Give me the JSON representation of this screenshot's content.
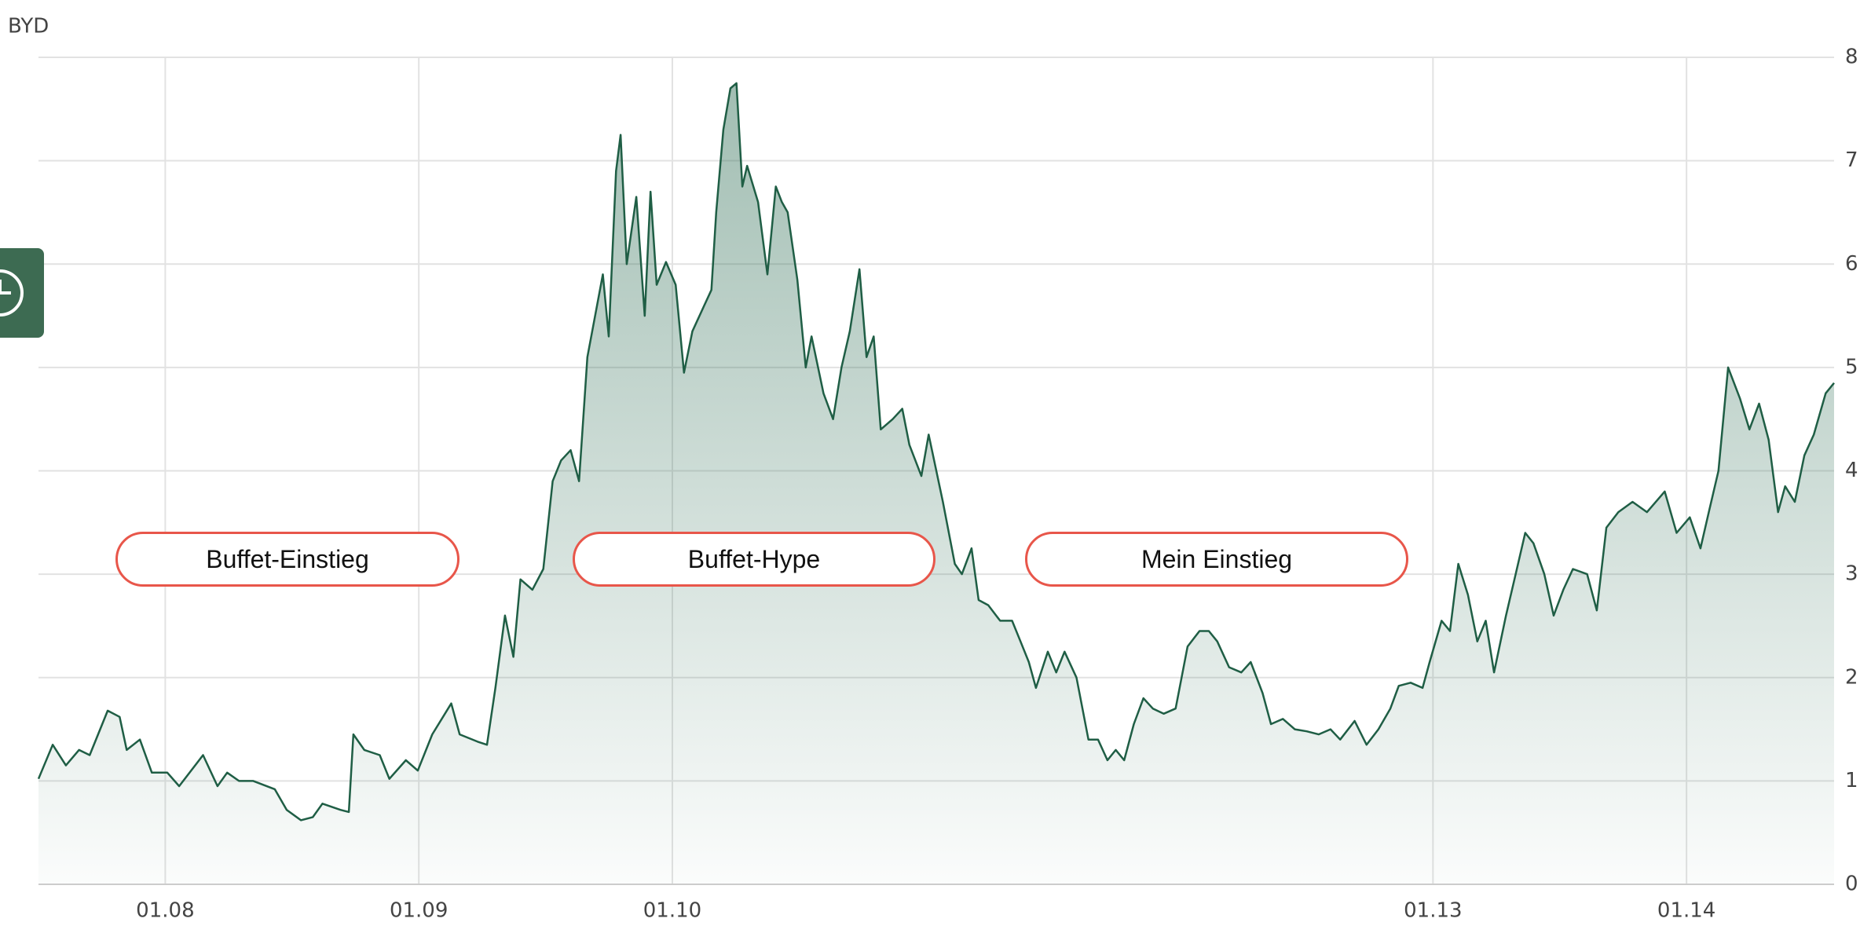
{
  "chart_data": {
    "type": "area",
    "title": "BYD",
    "annotations": [
      "Buffet-Einstieg",
      "Buffet-Hype",
      "Mein Einstieg"
    ],
    "color": "#1f5e45",
    "grid": true,
    "y_axis_side": "right",
    "xlim": [
      2007.5,
      2014.582
    ],
    "xticks": [
      {
        "value": 2008,
        "label": "01.08"
      },
      {
        "value": 2009,
        "label": "01.09"
      },
      {
        "value": 2010,
        "label": "01.10"
      },
      {
        "value": 2013,
        "label": "01.13"
      },
      {
        "value": 2014,
        "label": "01.14"
      }
    ],
    "ylim": [
      0,
      8
    ],
    "yticks": [
      0,
      1,
      2,
      3,
      4,
      5,
      6,
      7,
      8
    ],
    "x": [
      2007.5,
      2007.556,
      2007.608,
      2007.66,
      2007.702,
      2007.773,
      2007.82,
      2007.848,
      2007.9,
      2007.947,
      2008.008,
      2008.055,
      2008.102,
      2008.149,
      2008.206,
      2008.244,
      2008.291,
      2008.347,
      2008.432,
      2008.479,
      2008.535,
      2008.582,
      2008.62,
      2008.691,
      2008.724,
      2008.742,
      2008.785,
      2008.846,
      2008.884,
      2008.949,
      2008.996,
      2009.053,
      2009.128,
      2009.161,
      2009.232,
      2009.269,
      2009.302,
      2009.34,
      2009.373,
      2009.401,
      2009.448,
      2009.491,
      2009.528,
      2009.561,
      2009.599,
      2009.632,
      2009.665,
      2009.726,
      2009.749,
      2009.778,
      2009.796,
      2009.82,
      2009.858,
      2009.891,
      2009.914,
      2009.938,
      2009.975,
      2010.013,
      2010.046,
      2010.079,
      2010.126,
      2010.154,
      2010.173,
      2010.201,
      2010.229,
      2010.253,
      2010.276,
      2010.295,
      2010.338,
      2010.375,
      2010.408,
      2010.432,
      2010.455,
      2010.493,
      2010.526,
      2010.549,
      2010.596,
      2010.634,
      2010.667,
      2010.7,
      2010.738,
      2010.766,
      2010.794,
      2010.822,
      2010.869,
      2010.907,
      2010.935,
      2010.982,
      2011.011,
      2011.067,
      2011.114,
      2011.142,
      2011.18,
      2011.208,
      2011.246,
      2011.293,
      2011.34,
      2011.373,
      2011.406,
      2011.434,
      2011.481,
      2011.514,
      2011.547,
      2011.594,
      2011.641,
      2011.679,
      2011.716,
      2011.749,
      2011.782,
      2011.82,
      2011.858,
      2011.895,
      2011.938,
      2011.985,
      2012.032,
      2012.079,
      2012.116,
      2012.149,
      2012.196,
      2012.244,
      2012.281,
      2012.328,
      2012.361,
      2012.408,
      2012.455,
      2012.502,
      2012.549,
      2012.596,
      2012.634,
      2012.691,
      2012.738,
      2012.785,
      2012.832,
      2012.865,
      2012.912,
      2012.959,
      2012.987,
      2013.034,
      2013.067,
      2013.1,
      2013.138,
      2013.175,
      2013.208,
      2013.241,
      2013.288,
      2013.326,
      2013.364,
      2013.396,
      2013.439,
      2013.476,
      2013.514,
      2013.552,
      2013.608,
      2013.646,
      2013.684,
      2013.731,
      2013.787,
      2013.844,
      2013.914,
      2013.961,
      2014.013,
      2014.055,
      2014.088,
      2014.126,
      2014.164,
      2014.211,
      2014.248,
      2014.286,
      2014.324,
      2014.361,
      2014.389,
      2014.427,
      2014.465,
      2014.502,
      2014.549,
      2014.582
    ],
    "series": [
      {
        "name": "BYD",
        "values": [
          1.02,
          1.35,
          1.15,
          1.3,
          1.25,
          1.68,
          1.62,
          1.3,
          1.4,
          1.08,
          1.08,
          0.95,
          1.1,
          1.25,
          0.95,
          1.08,
          1.0,
          1.0,
          0.92,
          0.72,
          0.62,
          0.65,
          0.78,
          0.72,
          0.7,
          1.45,
          1.3,
          1.25,
          1.02,
          1.2,
          1.1,
          1.45,
          1.75,
          1.45,
          1.38,
          1.35,
          1.9,
          2.6,
          2.2,
          2.95,
          2.85,
          3.05,
          3.9,
          4.1,
          4.2,
          3.9,
          5.1,
          5.9,
          5.3,
          6.9,
          7.25,
          6.0,
          6.65,
          5.5,
          6.7,
          5.8,
          6.02,
          5.8,
          4.95,
          5.35,
          5.6,
          5.75,
          6.5,
          7.3,
          7.7,
          7.75,
          6.75,
          6.95,
          6.6,
          5.9,
          6.75,
          6.6,
          6.5,
          5.85,
          5.0,
          5.3,
          4.75,
          4.5,
          5.0,
          5.35,
          5.95,
          5.1,
          5.3,
          4.4,
          4.5,
          4.6,
          4.25,
          3.95,
          4.35,
          3.7,
          3.1,
          3.0,
          3.25,
          2.75,
          2.7,
          2.55,
          2.55,
          2.35,
          2.15,
          1.9,
          2.25,
          2.05,
          2.25,
          2.0,
          1.4,
          1.4,
          1.2,
          1.3,
          1.2,
          1.55,
          1.8,
          1.7,
          1.65,
          1.7,
          2.3,
          2.45,
          2.45,
          2.35,
          2.1,
          2.05,
          2.15,
          1.85,
          1.55,
          1.6,
          1.5,
          1.48,
          1.45,
          1.5,
          1.4,
          1.58,
          1.35,
          1.5,
          1.7,
          1.92,
          1.95,
          1.9,
          2.15,
          2.55,
          2.45,
          3.1,
          2.8,
          2.35,
          2.55,
          2.05,
          2.6,
          3.0,
          3.4,
          3.3,
          3.0,
          2.6,
          2.85,
          3.05,
          3.0,
          2.65,
          3.45,
          3.6,
          3.7,
          3.6,
          3.8,
          3.4,
          3.55,
          3.25,
          3.6,
          4.0,
          5.0,
          4.7,
          4.4,
          4.65,
          4.3,
          3.6,
          3.85,
          3.7,
          4.15,
          4.35,
          4.75,
          4.85
        ]
      }
    ]
  }
}
